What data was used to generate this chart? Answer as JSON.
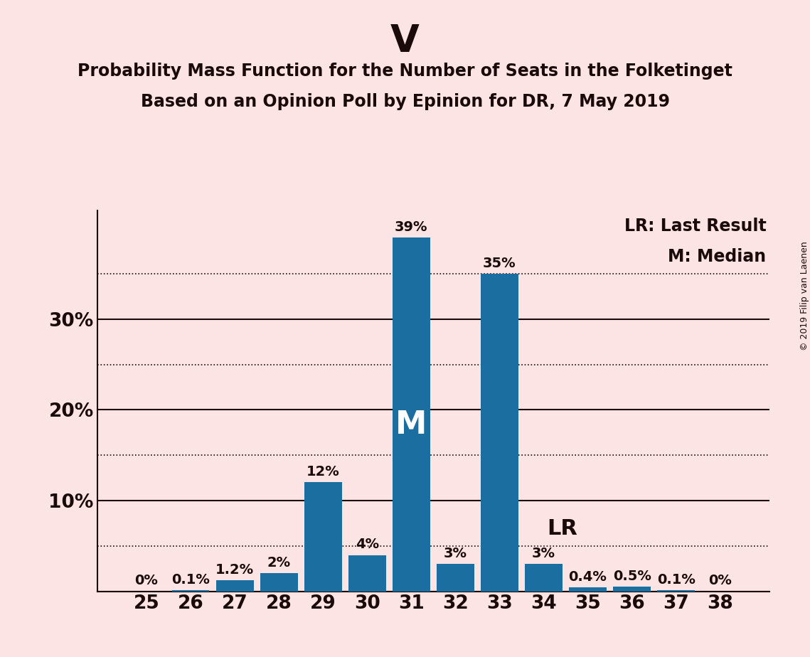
{
  "title_main": "V",
  "title_sub1": "Probability Mass Function for the Number of Seats in the Folketinget",
  "title_sub2": "Based on an Opinion Poll by Epinion for DR, 7 May 2019",
  "copyright_text": "© 2019 Filip van Laenen",
  "categories": [
    25,
    26,
    27,
    28,
    29,
    30,
    31,
    32,
    33,
    34,
    35,
    36,
    37,
    38
  ],
  "values": [
    0.0,
    0.1,
    1.2,
    2.0,
    12.0,
    4.0,
    39.0,
    3.0,
    35.0,
    3.0,
    0.4,
    0.5,
    0.1,
    0.0
  ],
  "labels": [
    "0%",
    "0.1%",
    "1.2%",
    "2%",
    "12%",
    "4%",
    "39%",
    "3%",
    "35%",
    "3%",
    "0.4%",
    "0.5%",
    "0.1%",
    "0%"
  ],
  "bar_color": "#1a6fa0",
  "background_color": "#fce4e4",
  "text_color": "#1a0a0a",
  "solid_yticks": [
    0,
    10,
    20,
    30
  ],
  "ytick_labels": [
    "",
    "10%",
    "20%",
    "30%"
  ],
  "dotted_yticks": [
    5,
    15,
    25,
    35
  ],
  "median_seat": 31,
  "lr_seat": 34,
  "legend_lr": "LR: Last Result",
  "legend_m": "M: Median",
  "ylim": [
    0,
    42
  ],
  "title_main_fontsize": 38,
  "title_sub_fontsize": 17,
  "tick_fontsize": 19,
  "label_fontsize": 14,
  "median_label_fontsize": 32,
  "lr_label_fontsize": 22,
  "legend_fontsize": 17,
  "copyright_fontsize": 9
}
